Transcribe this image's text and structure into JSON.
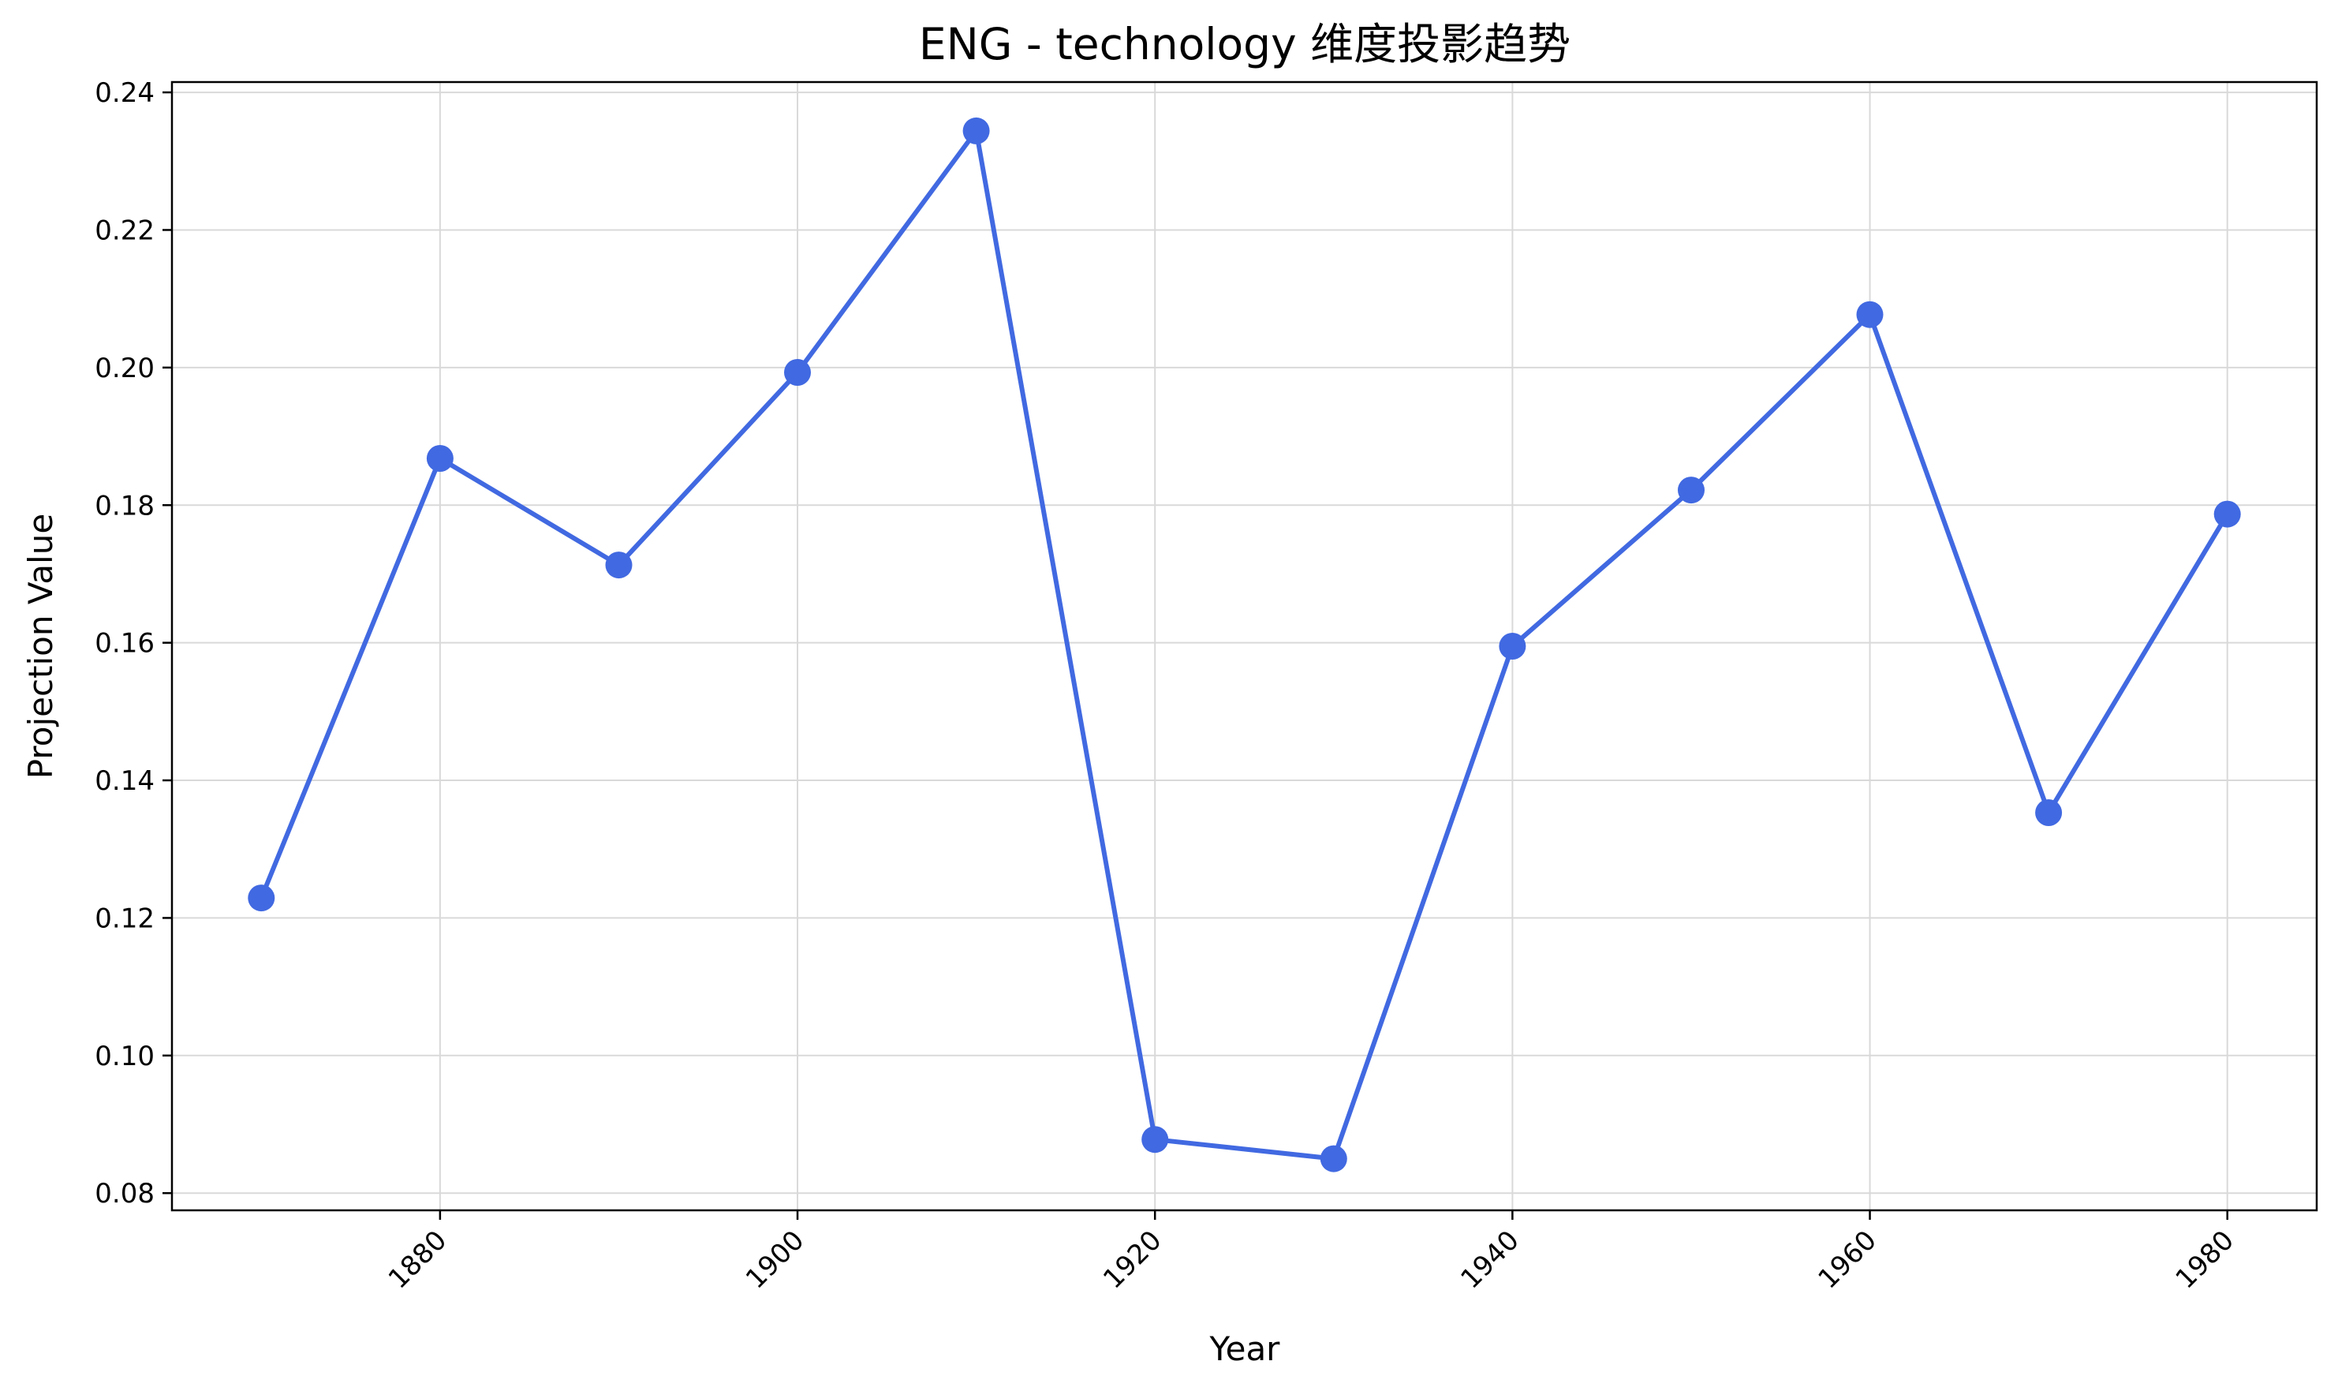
{
  "chart_data": {
    "type": "line",
    "title": "ENG - technology 维度投影趋势",
    "xlabel": "Year",
    "ylabel": "Projection Value",
    "x": [
      1870,
      1880,
      1890,
      1900,
      1910,
      1920,
      1930,
      1940,
      1950,
      1960,
      1970,
      1980
    ],
    "series": [
      {
        "values": [
          0.1229,
          0.1868,
          0.1713,
          0.1993,
          0.2344,
          0.0878,
          0.085,
          0.1595,
          0.1822,
          0.2077,
          0.1353,
          0.1787
        ]
      }
    ],
    "xlim": [
      1865,
      1985
    ],
    "ylim": [
      0.0775,
      0.2415
    ],
    "x_ticks": [
      1880,
      1900,
      1920,
      1940,
      1960,
      1980
    ],
    "y_ticks": [
      0.08,
      0.1,
      0.12,
      0.14,
      0.16,
      0.18,
      0.2,
      0.22,
      0.24
    ],
    "y_tick_labels": [
      "0.08",
      "0.10",
      "0.12",
      "0.14",
      "0.16",
      "0.18",
      "0.20",
      "0.22",
      "0.24"
    ],
    "x_tick_labels": [
      "1880",
      "1900",
      "1920",
      "1940",
      "1960",
      "1980"
    ],
    "grid": true,
    "legend": false,
    "line_color": "#4169e1",
    "marker": "circle"
  }
}
